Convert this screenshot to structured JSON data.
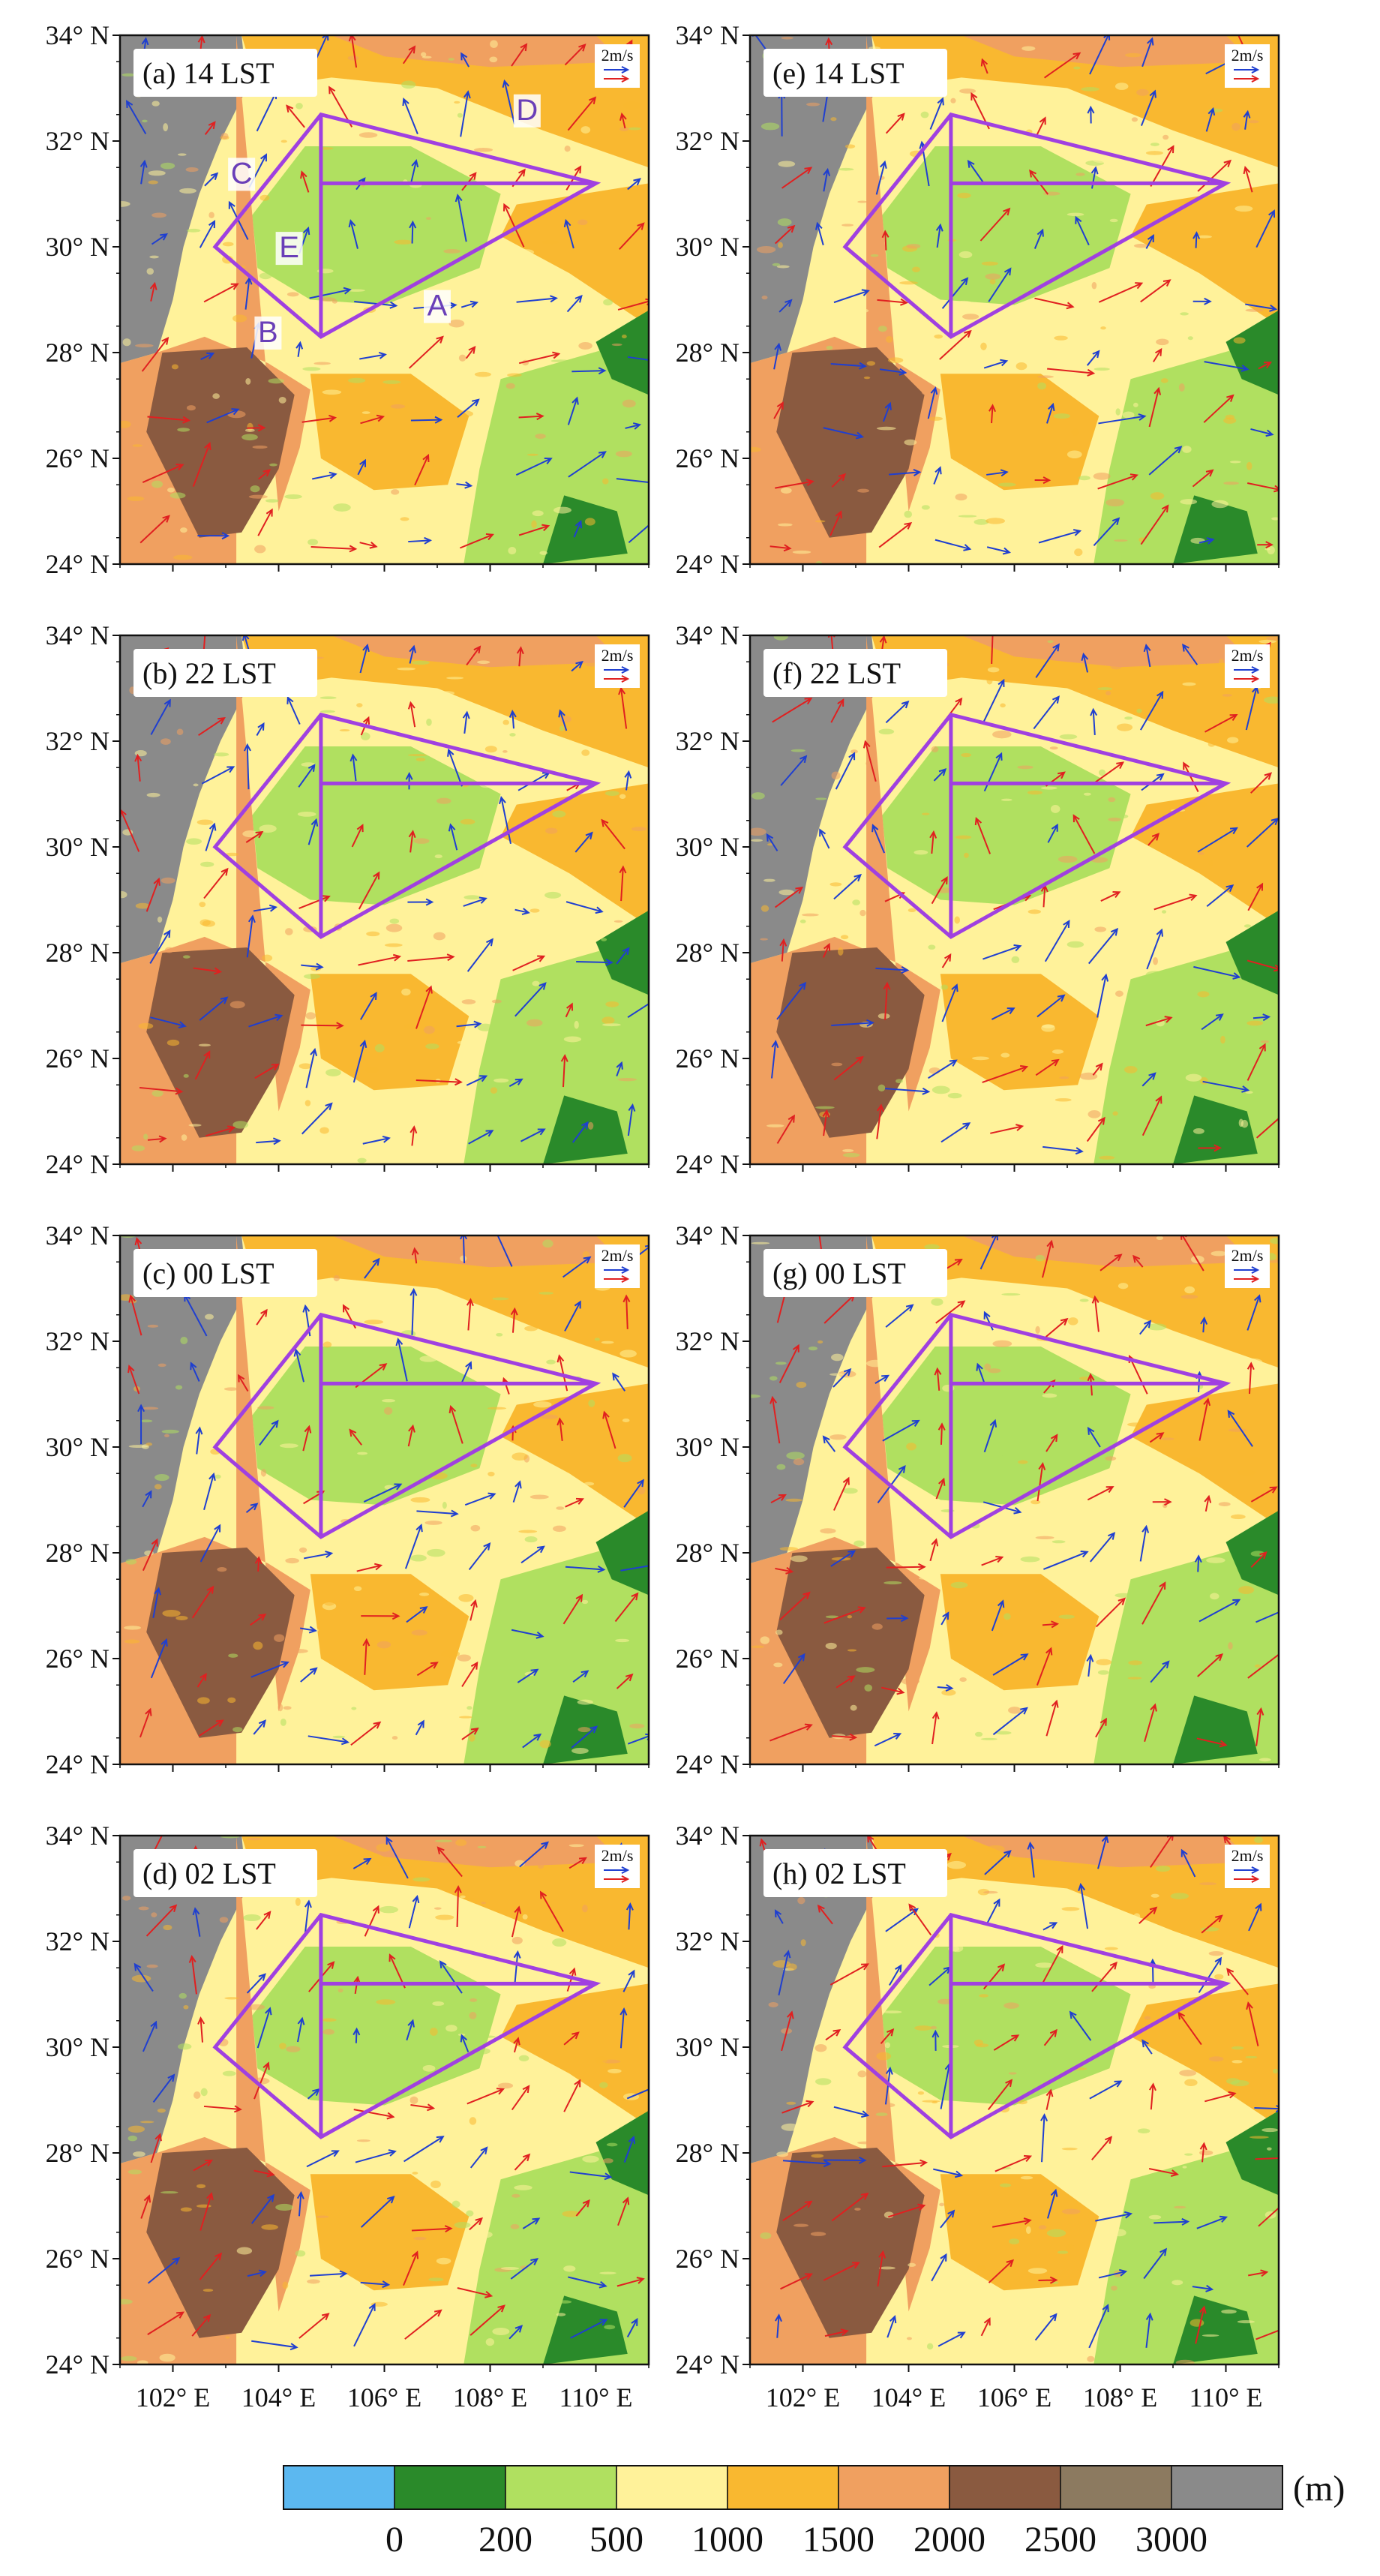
{
  "panels": [
    {
      "label": "(a) 14 LST",
      "col": 0,
      "row": 0,
      "regions": true
    },
    {
      "label": "(b) 22 LST",
      "col": 0,
      "row": 1,
      "regions": false
    },
    {
      "label": "(c) 00 LST",
      "col": 0,
      "row": 2,
      "regions": false
    },
    {
      "label": "(d) 02 LST",
      "col": 0,
      "row": 3,
      "regions": false
    },
    {
      "label": "(e) 14 LST",
      "col": 1,
      "row": 0,
      "regions": false
    },
    {
      "label": "(f) 22 LST",
      "col": 1,
      "row": 1,
      "regions": false
    },
    {
      "label": "(g) 00 LST",
      "col": 1,
      "row": 2,
      "regions": false
    },
    {
      "label": "(h) 02 LST",
      "col": 1,
      "row": 3,
      "regions": false
    }
  ],
  "lat_ticks": [
    "34° N",
    "32° N",
    "30° N",
    "28° N",
    "26° N",
    "24° N"
  ],
  "lon_ticks": [
    "102° E",
    "104° E",
    "106° E",
    "108° E",
    "110° E"
  ],
  "lon_range": [
    101,
    111
  ],
  "lat_range": [
    24,
    34
  ],
  "scale_label": "2m/s",
  "region_polygon": [
    [
      102.8,
      30.0
    ],
    [
      104.8,
      32.5
    ],
    [
      110.0,
      31.2
    ],
    [
      104.8,
      28.3
    ]
  ],
  "region_lines": [
    [
      [
        104.8,
        32.5
      ],
      [
        104.8,
        28.3
      ]
    ],
    [
      [
        104.8,
        31.2
      ],
      [
        110.0,
        31.2
      ]
    ]
  ],
  "region_labels": [
    {
      "text": "A",
      "lon": 107.0,
      "lat": 28.7
    },
    {
      "text": "B",
      "lon": 103.8,
      "lat": 28.2
    },
    {
      "text": "C",
      "lon": 103.3,
      "lat": 31.2
    },
    {
      "text": "D",
      "lon": 108.7,
      "lat": 32.4
    },
    {
      "text": "E",
      "lon": 104.2,
      "lat": 29.8
    }
  ],
  "colorbar": {
    "colors": [
      "#5cb8f0",
      "#2a8a2a",
      "#b0e060",
      "#fff29a",
      "#f9b830",
      "#f0a060",
      "#8a5a40",
      "#8c7a60",
      "#8a8a8a"
    ],
    "labels": [
      "0",
      "200",
      "500",
      "1000",
      "1500",
      "2000",
      "2500",
      "3000"
    ],
    "unit": "(m)"
  },
  "vector_colors": {
    "series_1": "#1f3fd0",
    "series_2": "#e02020"
  },
  "polygon_color": "#a040e0",
  "terrain_colors": {
    "plain": "#b0e060",
    "low": "#fff29a",
    "mid": "#f9b830",
    "high": "#f0a060",
    "mountain": "#8a5a40",
    "plateau": "#8c7a60",
    "peak": "#8a8a8a",
    "valley_green": "#2a8a2a"
  }
}
